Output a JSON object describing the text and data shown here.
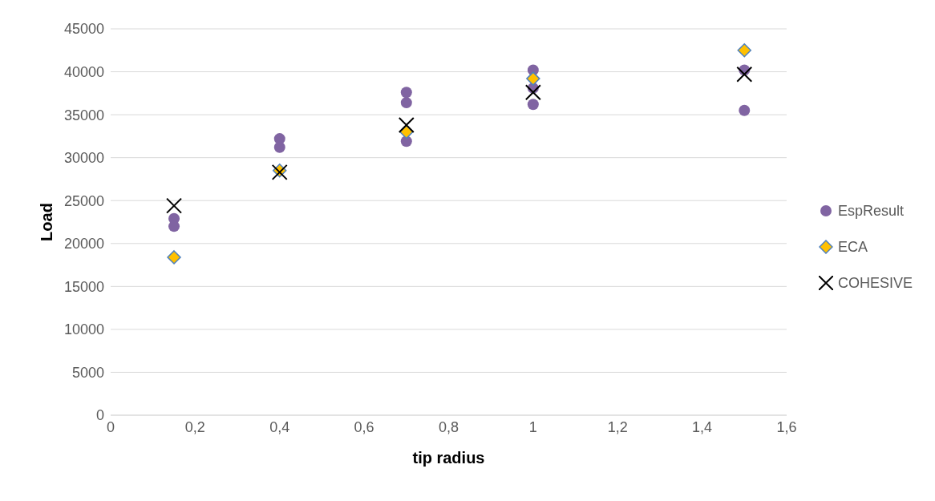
{
  "chart_data": {
    "type": "scatter",
    "xlabel": "tip radius",
    "ylabel": "Load",
    "series": [
      {
        "name": "EspResult",
        "color": "#8064a2",
        "marker": "circle",
        "x": [
          0.15,
          0.15,
          0.4,
          0.4,
          0.7,
          0.7,
          0.7,
          1,
          1,
          1,
          1.5,
          1.5
        ],
        "values": [
          22900,
          22000,
          32200,
          31200,
          37600,
          36400,
          31900,
          40200,
          38100,
          36200,
          40200,
          35500
        ]
      },
      {
        "name": "ECA",
        "color": "#ffc000",
        "marker": "diamond",
        "x": [
          0.15,
          0.4,
          0.7,
          1,
          1.5
        ],
        "values": [
          18400,
          28500,
          33000,
          39200,
          42500
        ]
      },
      {
        "name": "COHESIVE",
        "color": "#000000",
        "marker": "cross",
        "x": [
          0.15,
          0.4,
          0.7,
          1,
          1.5
        ],
        "values": [
          24400,
          28300,
          33800,
          37600,
          39700
        ]
      }
    ],
    "xlim": [
      0,
      1.6
    ],
    "xticks": [
      0,
      {
        "value": 0.2,
        "label": "0,2"
      },
      {
        "value": 0.4,
        "label": "0,4"
      },
      {
        "value": 0.6,
        "label": "0,6"
      },
      {
        "value": 0.8,
        "label": "0,8"
      },
      1,
      {
        "value": 1.2,
        "label": "1,2"
      },
      {
        "value": 1.4,
        "label": "1,4"
      },
      {
        "value": 1.6,
        "label": "1,6"
      }
    ],
    "ylim": [
      0,
      45000
    ],
    "yticks": [
      0,
      5000,
      10000,
      15000,
      20000,
      25000,
      30000,
      35000,
      40000,
      45000
    ],
    "grid": "y",
    "legend": "right"
  }
}
